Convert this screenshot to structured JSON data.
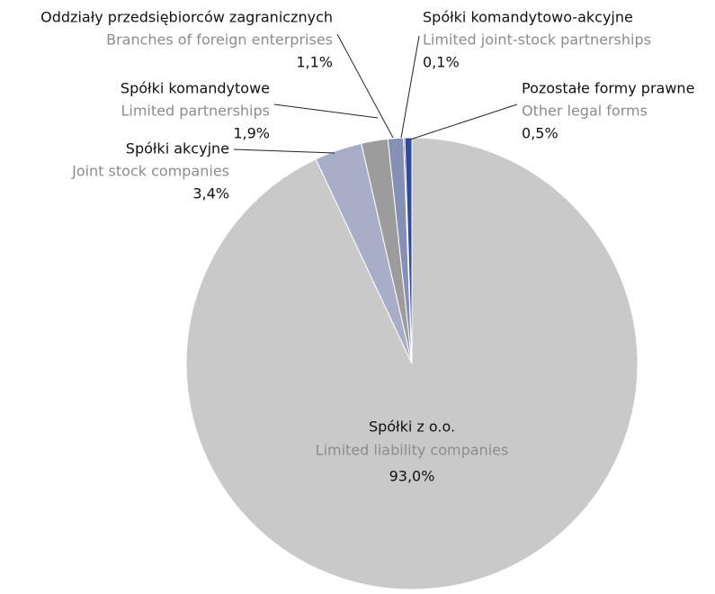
{
  "chart_data": {
    "type": "pie",
    "categories": [
      "Spółki z o.o.",
      "Spółki akcyjne",
      "Spółki komandytowe",
      "Oddziały przedsiębiorców zagranicznych",
      "Spółki komandytowo-akcyjne",
      "Pozostałe formy prawne"
    ],
    "categories_en": [
      "Limited liability companies",
      "Joint stock companies",
      "Limited partnerships",
      "Branches of foreign enterprises",
      "Limited joint-stock partnerships",
      "Other legal forms"
    ],
    "values": [
      93.0,
      3.4,
      1.9,
      1.1,
      0.1,
      0.5
    ],
    "value_labels": [
      "93,0%",
      "3,4%",
      "1,9%",
      "1,1%",
      "0,1%",
      "0,5%"
    ],
    "colors": [
      "#c9c9c9",
      "#a8aec8",
      "#9c9c9c",
      "#8690b4",
      "#3a3f5c",
      "#2f4b9c"
    ]
  }
}
